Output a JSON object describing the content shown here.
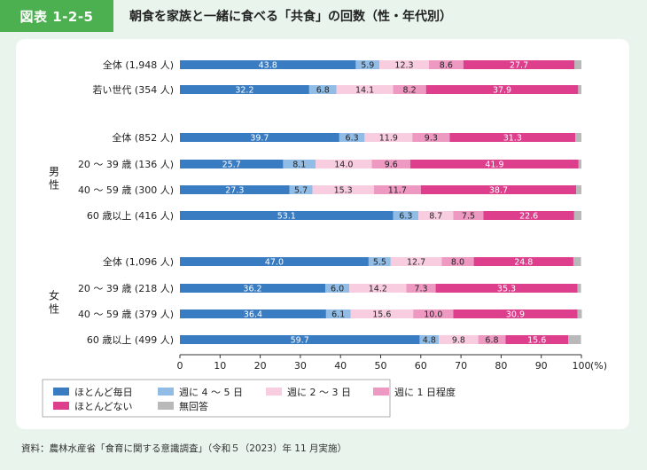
{
  "figure": {
    "tag": "図表 1-2-5",
    "title": "朝食を家族と一緒に食べる「共食」の回数（性・年代別）"
  },
  "source": "資料：農林水産省「食育に関する意識調査」（令和５（2023）年 11 月実施）",
  "chart_data": {
    "type": "bar",
    "orientation": "horizontal",
    "stacked": true,
    "xlim": [
      0,
      100
    ],
    "xticks": [
      0,
      10,
      20,
      30,
      40,
      50,
      60,
      70,
      80,
      90,
      100
    ],
    "xunit": "(%)",
    "legend_position": "bottom",
    "series": [
      {
        "name": "ほとんど毎日",
        "color": "#3a7cc2",
        "text_color": "#ffffff"
      },
      {
        "name": "週に 4 ～ 5 日",
        "color": "#90bce6",
        "text_color": "#222222"
      },
      {
        "name": "週に 2 ～ 3 日",
        "color": "#f8cde0",
        "text_color": "#222222"
      },
      {
        "name": "週に 1 日程度",
        "color": "#ee99c2",
        "text_color": "#222222"
      },
      {
        "name": "ほとんどない",
        "color": "#de3f8d",
        "text_color": "#ffffff"
      },
      {
        "name": "無回答",
        "color": "#b9b9b9",
        "text_color": "#222222"
      }
    ],
    "groups": [
      {
        "label": "",
        "rows": [
          {
            "label": "全体 (1,948 人)",
            "values": [
              43.8,
              5.9,
              12.3,
              8.6,
              27.7,
              1.7
            ]
          },
          {
            "label": "若い世代 (354 人)",
            "values": [
              32.2,
              6.8,
              14.1,
              8.2,
              37.9,
              0.8
            ]
          }
        ]
      },
      {
        "label": "男性",
        "rows": [
          {
            "label": "全体 (852 人)",
            "values": [
              39.7,
              6.3,
              11.9,
              9.3,
              31.3,
              1.5
            ]
          },
          {
            "label": "20 ～ 39 歳 (136 人)",
            "values": [
              25.7,
              8.1,
              14.0,
              9.6,
              41.9,
              0.7
            ]
          },
          {
            "label": "40 ～ 59 歳 (300 人)",
            "values": [
              27.3,
              5.7,
              15.3,
              11.7,
              38.7,
              1.3
            ]
          },
          {
            "label": "60 歳以上 (416 人)",
            "values": [
              53.1,
              6.3,
              8.7,
              7.5,
              22.6,
              1.8
            ]
          }
        ]
      },
      {
        "label": "女性",
        "rows": [
          {
            "label": "全体 (1,096 人)",
            "values": [
              47.0,
              5.5,
              12.7,
              8.0,
              24.8,
              1.9
            ]
          },
          {
            "label": "20 ～ 39 歳 (218 人)",
            "values": [
              36.2,
              6.0,
              14.2,
              7.3,
              35.3,
              0.9
            ]
          },
          {
            "label": "40 ～ 59 歳 (379 人)",
            "values": [
              36.4,
              6.1,
              15.6,
              10.0,
              30.9,
              1.1
            ]
          },
          {
            "label": "60 歳以上 (499 人)",
            "values": [
              59.7,
              4.8,
              9.8,
              6.8,
              15.6,
              3.2
            ]
          }
        ]
      }
    ]
  }
}
